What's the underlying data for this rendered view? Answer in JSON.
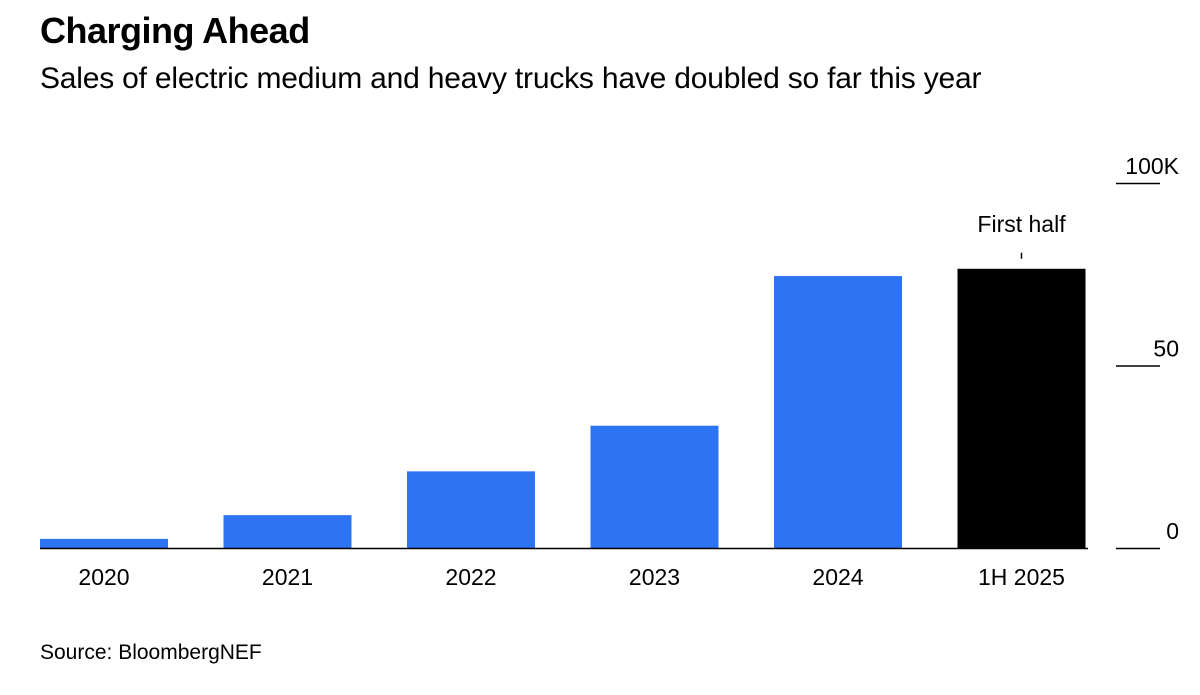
{
  "chart_data": {
    "type": "bar",
    "title": "Charging Ahead",
    "subtitle": "Sales of electric medium and heavy trucks have doubled so far this year",
    "categories": [
      "2020",
      "2021",
      "2022",
      "2023",
      "2024",
      "1H 2025"
    ],
    "values": [
      2.5,
      9,
      21,
      33.5,
      74.5,
      76.5
    ],
    "colors": [
      "#2d74f5",
      "#2d74f5",
      "#2d74f5",
      "#2d74f5",
      "#2d74f5",
      "#000000"
    ],
    "ylim": [
      0,
      100
    ],
    "yticks": [
      {
        "value": 0,
        "label": "0"
      },
      {
        "value": 50,
        "label": "50"
      },
      {
        "value": 100,
        "label": "100K"
      }
    ],
    "xlabel": "",
    "ylabel": "",
    "annotation": {
      "category_index": 5,
      "text": "First half"
    },
    "source": "Source: BloombergNEF"
  }
}
